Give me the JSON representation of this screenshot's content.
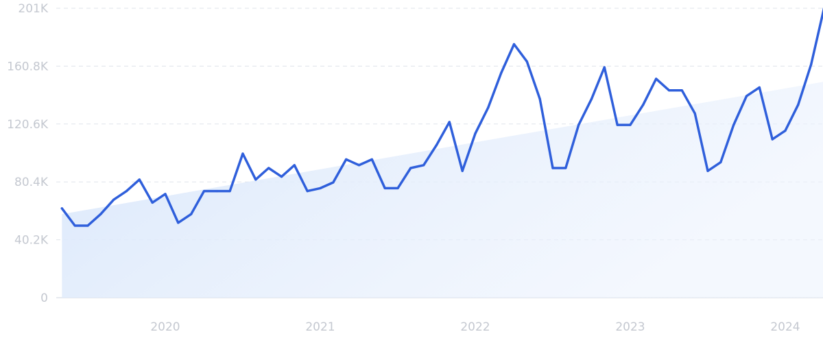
{
  "chart_data": {
    "type": "line",
    "title": "",
    "xlabel": "",
    "ylabel": "",
    "ylim": [
      0,
      201000
    ],
    "y_ticks": [
      {
        "value": 0,
        "label": "0"
      },
      {
        "value": 40200,
        "label": "40.2K"
      },
      {
        "value": 80400,
        "label": "80.4K"
      },
      {
        "value": 120600,
        "label": "120.6K"
      },
      {
        "value": 160800,
        "label": "160.8K"
      },
      {
        "value": 201000,
        "label": "201K"
      }
    ],
    "x_ticks": [
      {
        "date": "2020-01",
        "label": "2020"
      },
      {
        "date": "2021-01",
        "label": "2021"
      },
      {
        "date": "2022-01",
        "label": "2022"
      },
      {
        "date": "2023-01",
        "label": "2023"
      },
      {
        "date": "2024-01",
        "label": "2024"
      }
    ],
    "grid": true,
    "legend": "none",
    "trend_area": {
      "start": [
        "2019-05",
        58000
      ],
      "end": [
        "2024-04",
        150000
      ],
      "color": "#dbe8fa"
    },
    "series": [
      {
        "color": "#2f5fdb",
        "x": [
          "2019-05",
          "2019-06",
          "2019-07",
          "2019-08",
          "2019-09",
          "2019-10",
          "2019-11",
          "2019-12",
          "2020-01",
          "2020-02",
          "2020-03",
          "2020-04",
          "2020-05",
          "2020-06",
          "2020-07",
          "2020-08",
          "2020-09",
          "2020-10",
          "2020-11",
          "2020-12",
          "2021-01",
          "2021-02",
          "2021-03",
          "2021-04",
          "2021-05",
          "2021-06",
          "2021-07",
          "2021-08",
          "2021-09",
          "2021-10",
          "2021-11",
          "2021-12",
          "2022-01",
          "2022-02",
          "2022-03",
          "2022-04",
          "2022-05",
          "2022-06",
          "2022-07",
          "2022-08",
          "2022-09",
          "2022-10",
          "2022-11",
          "2022-12",
          "2023-01",
          "2023-02",
          "2023-03",
          "2023-04",
          "2023-05",
          "2023-06",
          "2023-07",
          "2023-08",
          "2023-09",
          "2023-10",
          "2023-11",
          "2023-12",
          "2024-01",
          "2024-02",
          "2024-03",
          "2024-04"
        ],
        "values": [
          62000,
          50000,
          50000,
          58000,
          68000,
          74000,
          82000,
          66000,
          72000,
          52000,
          58000,
          74000,
          74000,
          74000,
          100000,
          82000,
          90000,
          84000,
          92000,
          74000,
          76000,
          80000,
          96000,
          92000,
          96000,
          76000,
          76000,
          90000,
          92000,
          106000,
          122000,
          88000,
          114000,
          132000,
          156000,
          176000,
          164000,
          138000,
          90000,
          90000,
          120000,
          138000,
          160000,
          120000,
          120000,
          134000,
          152000,
          144000,
          144000,
          128000,
          88000,
          94000,
          120000,
          140000,
          146000,
          110000,
          116000,
          134000,
          162000,
          201000
        ]
      }
    ]
  }
}
